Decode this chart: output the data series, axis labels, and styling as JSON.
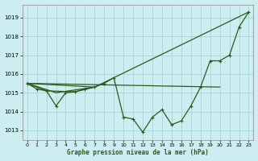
{
  "title": "Graphe pression niveau de la mer (hPa)",
  "background_color": "#cceef0",
  "grid_color": "#aad8dc",
  "line_color": "#2d5a1b",
  "xlim": [
    -0.5,
    23.5
  ],
  "ylim": [
    1012.5,
    1019.7
  ],
  "yticks": [
    1013,
    1014,
    1015,
    1016,
    1017,
    1018,
    1019
  ],
  "xticks": [
    0,
    1,
    2,
    3,
    4,
    5,
    6,
    7,
    8,
    9,
    10,
    11,
    12,
    13,
    14,
    15,
    16,
    17,
    18,
    19,
    20,
    21,
    22,
    23
  ],
  "series1_x": [
    0,
    1,
    2,
    3,
    4,
    5,
    6,
    7,
    8,
    9,
    10,
    11,
    12,
    13,
    14,
    15,
    16,
    17,
    18,
    19,
    20,
    21,
    22,
    23
  ],
  "series1_y": [
    1015.5,
    1015.2,
    1015.1,
    1014.3,
    1015.0,
    1015.05,
    1015.2,
    1015.3,
    1015.5,
    1015.8,
    1013.7,
    1013.6,
    1012.9,
    1013.7,
    1014.1,
    1013.3,
    1013.5,
    1014.3,
    1015.3,
    1016.7,
    1016.7,
    1017.0,
    1018.5,
    1019.3
  ],
  "series2_x": [
    0,
    7,
    23
  ],
  "series2_y": [
    1015.5,
    1015.3,
    1019.3
  ],
  "series3_x": [
    0,
    20
  ],
  "series3_y": [
    1015.5,
    1015.3
  ],
  "series4_x": [
    0,
    3,
    7
  ],
  "series4_y": [
    1015.5,
    1015.0,
    1015.3
  ],
  "series5_x": [
    0,
    2,
    5,
    7
  ],
  "series5_y": [
    1015.5,
    1015.1,
    1015.05,
    1015.3
  ]
}
